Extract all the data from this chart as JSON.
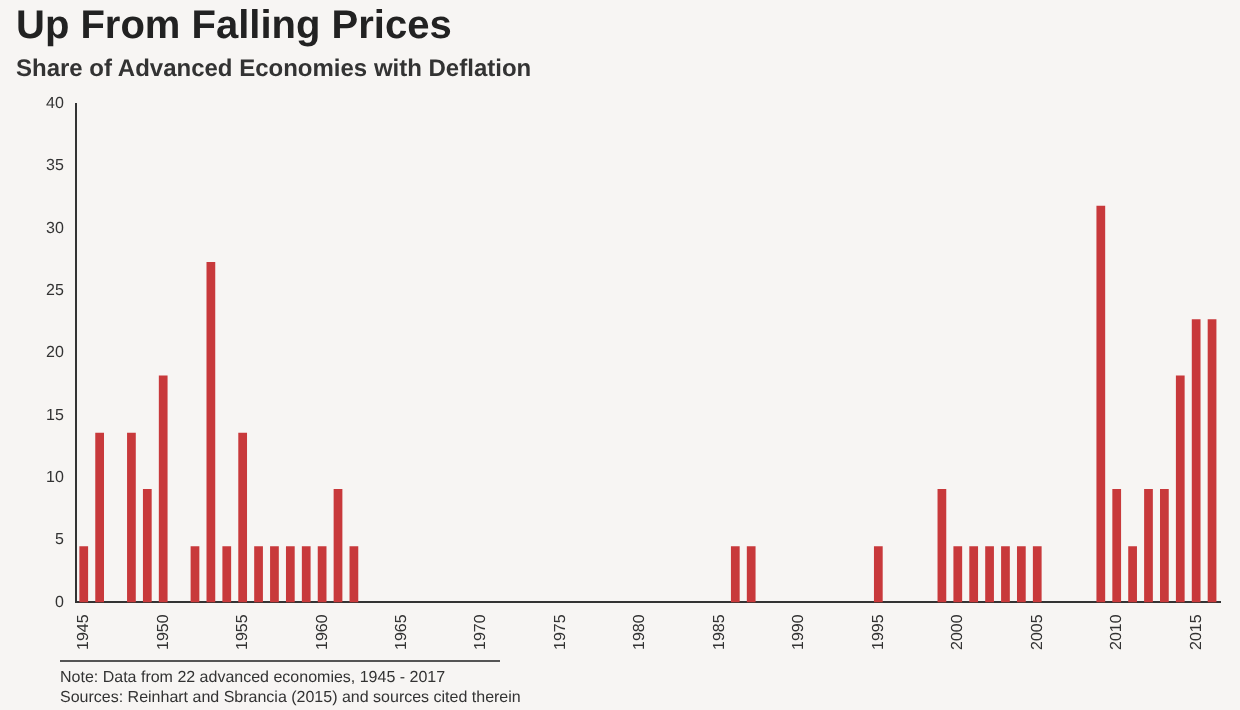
{
  "chart_data": {
    "type": "bar",
    "title": "Up From Falling Prices",
    "subtitle": "Share of Advanced Economies with Deflation",
    "categories": [
      "1945",
      null,
      null,
      null,
      null,
      "1950",
      null,
      null,
      null,
      null,
      "1955",
      null,
      null,
      null,
      null,
      "1960",
      null,
      null,
      null,
      null,
      "1965",
      null,
      null,
      null,
      null,
      "1970",
      null,
      null,
      null,
      null,
      "1975",
      null,
      null,
      null,
      null,
      "1980",
      null,
      null,
      null,
      null,
      "1985",
      null,
      null,
      null,
      null,
      "1990",
      null,
      null,
      null,
      null,
      "1995",
      null,
      null,
      null,
      null,
      "2000",
      null,
      null,
      null,
      null,
      "2005",
      null,
      null,
      null,
      null,
      "2010",
      null,
      null,
      null,
      null,
      "2015",
      null
    ],
    "values": [
      4.5,
      13.6,
      0,
      13.6,
      9.1,
      18.2,
      0,
      4.5,
      27.3,
      4.5,
      13.6,
      4.5,
      4.5,
      4.5,
      4.5,
      4.5,
      9.1,
      4.5,
      0,
      0,
      0,
      0,
      0,
      0,
      0,
      0,
      0,
      0,
      0,
      0,
      0,
      0,
      0,
      0,
      0,
      0,
      0,
      0,
      0,
      0,
      0,
      4.5,
      4.5,
      0,
      0,
      0,
      0,
      0,
      0,
      0,
      4.5,
      0,
      0,
      0,
      9.1,
      4.5,
      4.5,
      4.5,
      4.5,
      4.5,
      4.5,
      0,
      0,
      0,
      31.8,
      9.1,
      4.5,
      9.1,
      9.1,
      18.2,
      22.7,
      22.7
    ],
    "color": "#c8393b",
    "ylim": [
      0,
      40
    ],
    "yticks": [
      0,
      5,
      10,
      15,
      20,
      25,
      30,
      35,
      40
    ],
    "grid": false,
    "legend": false,
    "annotations": [
      "Note: Data from 22 advanced economies, 1945 - 2017",
      "Sources: Reinhart and Sbrancia (2015) and sources cited therein"
    ]
  }
}
